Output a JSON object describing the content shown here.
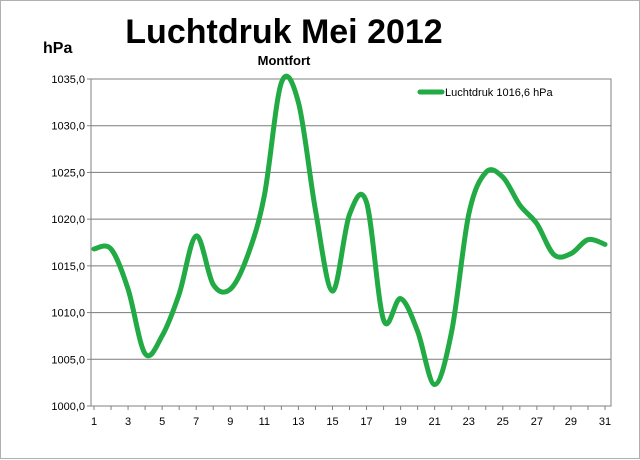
{
  "chart_data": {
    "type": "line",
    "title": "Luchtdruk Mei 2012",
    "subtitle": "Montfort",
    "ylabel": "hPa",
    "xlabel": "",
    "ylim": [
      1000,
      1035
    ],
    "yticks": [
      "1000,0",
      "1005,0",
      "1010,0",
      "1015,0",
      "1020,0",
      "1025,0",
      "1030,0",
      "1035,0"
    ],
    "xlim": [
      1,
      31
    ],
    "xticks": [
      "1",
      "3",
      "5",
      "7",
      "9",
      "11",
      "13",
      "15",
      "17",
      "19",
      "21",
      "23",
      "25",
      "27",
      "29",
      "31"
    ],
    "grid": true,
    "legend_position": "top-right",
    "color": "#22aa44",
    "series": [
      {
        "name": "Luchtdruk 1016,6 hPa",
        "x": [
          1,
          2,
          3,
          4,
          5,
          6,
          7,
          8,
          9,
          10,
          11,
          12,
          13,
          14,
          15,
          16,
          17,
          18,
          19,
          20,
          21,
          22,
          23,
          24,
          25,
          26,
          27,
          28,
          29,
          30,
          31
        ],
        "values": [
          1016.8,
          1016.8,
          1012.5,
          1005.6,
          1007.5,
          1012.0,
          1018.2,
          1013.0,
          1012.5,
          1016.0,
          1022.5,
          1034.6,
          1032.5,
          1021.0,
          1012.3,
          1020.5,
          1021.8,
          1009.2,
          1011.5,
          1008.0,
          1002.3,
          1008.0,
          1020.5,
          1025.0,
          1024.5,
          1021.5,
          1019.5,
          1016.2,
          1016.3,
          1017.8,
          1017.3
        ]
      }
    ]
  }
}
